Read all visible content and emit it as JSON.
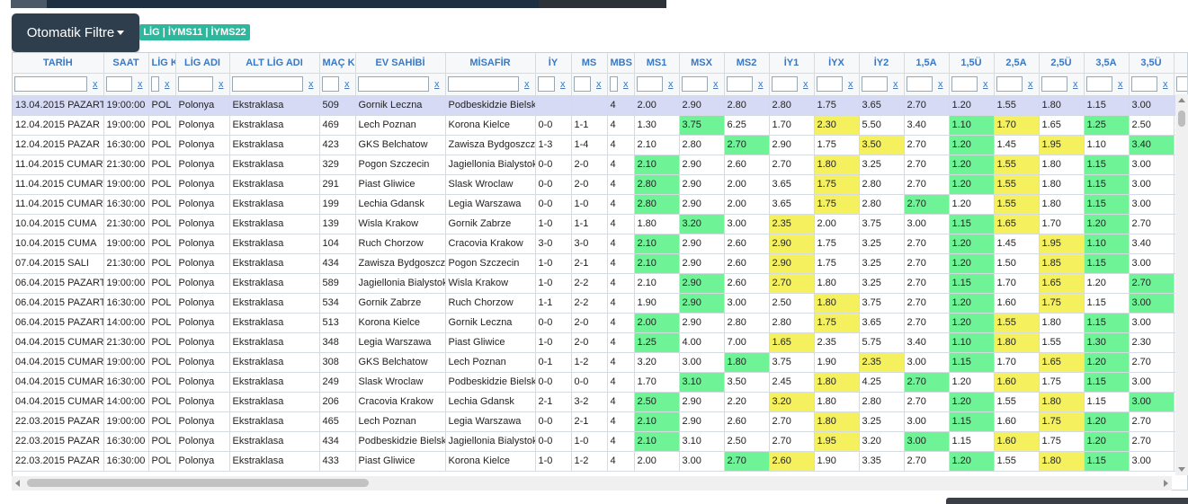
{
  "header": {
    "filter_button": "Otomatik Filtre",
    "badge": "LİG | İYMS11 | İYMS22"
  },
  "colors": {
    "green": "#6ef396",
    "yellow": "#f5f05e",
    "selected": "#d7daf5",
    "header_text": "#3a78c2"
  },
  "table": {
    "columns": [
      "TARİH",
      "SAAT",
      "LİG K",
      "LİG ADI",
      "ALT LİG ADI",
      "MAÇ K",
      "EV SAHİBİ",
      "MİSAFİR",
      "İY",
      "MS",
      "MBS",
      "MS1",
      "MSX",
      "MS2",
      "İY1",
      "İYX",
      "İY2",
      "1,5A",
      "1,5Ü",
      "2,5A",
      "2,5Ü",
      "3,5A",
      "3,5Ü",
      "İY"
    ],
    "filter_clear_label": "x",
    "rows": [
      {
        "c": [
          "13.04.2015 PAZARTESİ",
          "19:00:00",
          "POL",
          "Polonya",
          "Ekstraklasa",
          "509",
          "Gornik Leczna",
          "Podbeskidzie Bielsko",
          "",
          "",
          "4",
          "2.00",
          "2.90",
          "2.80",
          "2.80",
          "1.75",
          "3.65",
          "2.70",
          "1.20",
          "1.55",
          "1.80",
          "1.15",
          "3.00",
          ""
        ],
        "h": {}
      },
      {
        "c": [
          "12.04.2015 PAZAR",
          "19:00:00",
          "POL",
          "Polonya",
          "Ekstraklasa",
          "469",
          "Lech Poznan",
          "Korona Kielce",
          "0-0",
          "1-1",
          "4",
          "1.30",
          "3.75",
          "6.25",
          "1.70",
          "2.30",
          "5.50",
          "3.40",
          "1.10",
          "1.70",
          "1.65",
          "1.25",
          "2.50",
          ""
        ],
        "h": {
          "12": "g",
          "15": "y",
          "18": "g",
          "19": "y",
          "21": "g"
        }
      },
      {
        "c": [
          "12.04.2015 PAZAR",
          "16:30:00",
          "POL",
          "Polonya",
          "Ekstraklasa",
          "423",
          "GKS Belchatow",
          "Zawisza Bydgoszcz",
          "1-3",
          "1-4",
          "4",
          "2.10",
          "2.80",
          "2.70",
          "2.90",
          "1.75",
          "3.50",
          "2.70",
          "1.20",
          "1.45",
          "1.95",
          "1.10",
          "3.40",
          ""
        ],
        "h": {
          "13": "g",
          "16": "y",
          "18": "g",
          "20": "y",
          "22": "g"
        }
      },
      {
        "c": [
          "11.04.2015 CUMARTESİ",
          "21:30:00",
          "POL",
          "Polonya",
          "Ekstraklasa",
          "329",
          "Pogon Szczecin",
          "Jagiellonia Bialystok",
          "0-0",
          "2-0",
          "4",
          "2.10",
          "2.90",
          "2.60",
          "2.70",
          "1.80",
          "3.25",
          "2.70",
          "1.20",
          "1.55",
          "1.80",
          "1.15",
          "3.00",
          ""
        ],
        "h": {
          "11": "g",
          "15": "y",
          "18": "g",
          "19": "y",
          "21": "g"
        }
      },
      {
        "c": [
          "11.04.2015 CUMARTESİ",
          "19:00:00",
          "POL",
          "Polonya",
          "Ekstraklasa",
          "291",
          "Piast Gliwice",
          "Slask Wroclaw",
          "0-0",
          "2-0",
          "4",
          "2.80",
          "2.90",
          "2.00",
          "3.65",
          "1.75",
          "2.80",
          "2.70",
          "1.20",
          "1.55",
          "1.80",
          "1.15",
          "3.00",
          ""
        ],
        "h": {
          "11": "g",
          "15": "y",
          "18": "g",
          "19": "y",
          "21": "g"
        }
      },
      {
        "c": [
          "11.04.2015 CUMARTESİ",
          "16:30:00",
          "POL",
          "Polonya",
          "Ekstraklasa",
          "199",
          "Lechia Gdansk",
          "Legia Warszawa",
          "0-0",
          "1-0",
          "4",
          "2.80",
          "2.90",
          "2.00",
          "3.65",
          "1.75",
          "2.80",
          "2.70",
          "1.20",
          "1.55",
          "1.80",
          "1.15",
          "3.00",
          ""
        ],
        "h": {
          "11": "g",
          "15": "y",
          "17": "g",
          "19": "y",
          "21": "g"
        }
      },
      {
        "c": [
          "10.04.2015 CUMA",
          "21:30:00",
          "POL",
          "Polonya",
          "Ekstraklasa",
          "139",
          "Wisla Krakow",
          "Gornik Zabrze",
          "1-0",
          "1-1",
          "4",
          "1.80",
          "3.20",
          "3.00",
          "2.35",
          "2.00",
          "3.75",
          "3.00",
          "1.15",
          "1.65",
          "1.70",
          "1.20",
          "2.70",
          ""
        ],
        "h": {
          "12": "g",
          "14": "y",
          "18": "g",
          "19": "y",
          "21": "g"
        }
      },
      {
        "c": [
          "10.04.2015 CUMA",
          "19:00:00",
          "POL",
          "Polonya",
          "Ekstraklasa",
          "104",
          "Ruch Chorzow",
          "Cracovia Krakow",
          "3-0",
          "3-0",
          "4",
          "2.10",
          "2.90",
          "2.60",
          "2.90",
          "1.75",
          "3.25",
          "2.70",
          "1.20",
          "1.45",
          "1.95",
          "1.10",
          "3.40",
          ""
        ],
        "h": {
          "11": "g",
          "14": "y",
          "18": "g",
          "20": "y",
          "21": "g"
        }
      },
      {
        "c": [
          "07.04.2015 SALI",
          "21:30:00",
          "POL",
          "Polonya",
          "Ekstraklasa",
          "434",
          "Zawisza Bydgoszcz",
          "Pogon Szczecin",
          "1-0",
          "2-1",
          "4",
          "2.10",
          "2.90",
          "2.60",
          "2.90",
          "1.75",
          "3.25",
          "2.70",
          "1.20",
          "1.50",
          "1.85",
          "1.15",
          "3.00",
          ""
        ],
        "h": {
          "11": "g",
          "14": "y",
          "18": "g",
          "20": "y",
          "21": "g"
        }
      },
      {
        "c": [
          "06.04.2015 PAZARTESİ",
          "19:00:00",
          "POL",
          "Polonya",
          "Ekstraklasa",
          "589",
          "Jagiellonia Bialystok",
          "Wisla Krakow",
          "1-0",
          "2-2",
          "4",
          "2.10",
          "2.90",
          "2.60",
          "2.70",
          "1.80",
          "3.25",
          "2.70",
          "1.15",
          "1.70",
          "1.65",
          "1.20",
          "2.70",
          ""
        ],
        "h": {
          "12": "g",
          "14": "y",
          "18": "g",
          "20": "y",
          "22": "g"
        }
      },
      {
        "c": [
          "06.04.2015 PAZARTESİ",
          "16:30:00",
          "POL",
          "Polonya",
          "Ekstraklasa",
          "534",
          "Gornik Zabrze",
          "Ruch Chorzow",
          "1-1",
          "2-2",
          "4",
          "1.90",
          "2.90",
          "3.00",
          "2.50",
          "1.80",
          "3.75",
          "2.70",
          "1.20",
          "1.60",
          "1.75",
          "1.15",
          "3.00",
          ""
        ],
        "h": {
          "12": "g",
          "15": "y",
          "18": "g",
          "20": "y",
          "22": "g"
        }
      },
      {
        "c": [
          "06.04.2015 PAZARTESİ",
          "14:00:00",
          "POL",
          "Polonya",
          "Ekstraklasa",
          "513",
          "Korona Kielce",
          "Gornik Leczna",
          "0-0",
          "2-0",
          "4",
          "2.00",
          "2.90",
          "2.80",
          "2.80",
          "1.75",
          "3.65",
          "2.70",
          "1.20",
          "1.55",
          "1.80",
          "1.15",
          "3.00",
          ""
        ],
        "h": {
          "11": "g",
          "15": "y",
          "18": "g",
          "19": "y",
          "21": "g"
        }
      },
      {
        "c": [
          "04.04.2015 CUMARTESİ",
          "21:30:00",
          "POL",
          "Polonya",
          "Ekstraklasa",
          "348",
          "Legia Warszawa",
          "Piast Gliwice",
          "1-0",
          "2-0",
          "4",
          "1.25",
          "4.00",
          "7.00",
          "1.65",
          "2.35",
          "5.75",
          "3.40",
          "1.10",
          "1.80",
          "1.55",
          "1.30",
          "2.30",
          ""
        ],
        "h": {
          "11": "g",
          "14": "y",
          "18": "g",
          "19": "y",
          "21": "g"
        }
      },
      {
        "c": [
          "04.04.2015 CUMARTESİ",
          "19:00:00",
          "POL",
          "Polonya",
          "Ekstraklasa",
          "308",
          "GKS Belchatow",
          "Lech Poznan",
          "0-1",
          "1-2",
          "4",
          "3.20",
          "3.00",
          "1.80",
          "3.75",
          "1.90",
          "2.35",
          "3.00",
          "1.15",
          "1.70",
          "1.65",
          "1.20",
          "2.70",
          ""
        ],
        "h": {
          "13": "g",
          "16": "y",
          "18": "g",
          "20": "y",
          "21": "g"
        }
      },
      {
        "c": [
          "04.04.2015 CUMARTESİ",
          "16:30:00",
          "POL",
          "Polonya",
          "Ekstraklasa",
          "249",
          "Slask Wroclaw",
          "Podbeskidzie Bielsko",
          "0-0",
          "0-0",
          "4",
          "1.70",
          "3.10",
          "3.50",
          "2.45",
          "1.80",
          "4.25",
          "2.70",
          "1.20",
          "1.60",
          "1.75",
          "1.15",
          "3.00",
          ""
        ],
        "h": {
          "12": "g",
          "15": "y",
          "17": "g",
          "19": "y",
          "21": "g"
        }
      },
      {
        "c": [
          "04.04.2015 CUMARTESİ",
          "14:00:00",
          "POL",
          "Polonya",
          "Ekstraklasa",
          "206",
          "Cracovia Krakow",
          "Lechia Gdansk",
          "2-1",
          "3-2",
          "4",
          "2.50",
          "2.90",
          "2.20",
          "3.20",
          "1.80",
          "2.80",
          "2.70",
          "1.20",
          "1.55",
          "1.80",
          "1.15",
          "3.00",
          ""
        ],
        "h": {
          "11": "g",
          "14": "y",
          "18": "g",
          "20": "y",
          "22": "g"
        }
      },
      {
        "c": [
          "22.03.2015 PAZAR",
          "19:00:00",
          "POL",
          "Polonya",
          "Ekstraklasa",
          "465",
          "Lech Poznan",
          "Legia Warszawa",
          "0-0",
          "2-1",
          "4",
          "2.10",
          "2.90",
          "2.60",
          "2.70",
          "1.80",
          "3.25",
          "3.00",
          "1.15",
          "1.60",
          "1.75",
          "1.20",
          "2.70",
          ""
        ],
        "h": {
          "11": "g",
          "15": "y",
          "18": "g",
          "20": "y",
          "21": "g"
        }
      },
      {
        "c": [
          "22.03.2015 PAZAR",
          "16:30:00",
          "POL",
          "Polonya",
          "Ekstraklasa",
          "434",
          "Podbeskidzie Bielsko",
          "Jagiellonia Bialystok",
          "0-0",
          "1-0",
          "4",
          "2.10",
          "3.10",
          "2.50",
          "2.70",
          "1.95",
          "3.20",
          "3.00",
          "1.15",
          "1.60",
          "1.75",
          "1.20",
          "2.70",
          ""
        ],
        "h": {
          "11": "g",
          "15": "y",
          "17": "g",
          "19": "y",
          "21": "g"
        }
      },
      {
        "c": [
          "22.03.2015 PAZAR",
          "16:30:00",
          "POL",
          "Polonya",
          "Ekstraklasa",
          "433",
          "Piast Gliwice",
          "Korona Kielce",
          "1-0",
          "1-2",
          "4",
          "2.00",
          "3.00",
          "2.70",
          "2.60",
          "1.90",
          "3.35",
          "2.70",
          "1.20",
          "1.55",
          "1.80",
          "1.15",
          "3.00",
          ""
        ],
        "h": {
          "13": "g",
          "14": "y",
          "18": "g",
          "20": "y",
          "21": "g"
        }
      }
    ]
  }
}
